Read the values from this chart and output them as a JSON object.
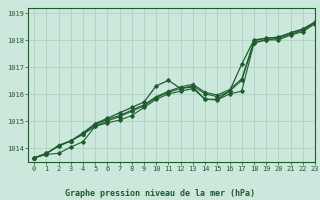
{
  "title": "Graphe pression niveau de la mer (hPa)",
  "background_color": "#cce8dd",
  "grid_color": "#aad4c0",
  "line_color": "#1e5c2e",
  "xlim": [
    -0.5,
    23
  ],
  "ylim": [
    1013.5,
    1019.2
  ],
  "yticks": [
    1014,
    1015,
    1016,
    1017,
    1018,
    1019
  ],
  "xticks": [
    0,
    1,
    2,
    3,
    4,
    5,
    6,
    7,
    8,
    9,
    10,
    11,
    12,
    13,
    14,
    15,
    16,
    17,
    18,
    19,
    20,
    21,
    22,
    23
  ],
  "series": [
    [
      1013.65,
      1013.78,
      1013.82,
      1014.05,
      1014.25,
      1014.82,
      1014.95,
      1015.05,
      1015.22,
      1015.52,
      1015.82,
      1016.02,
      1016.12,
      1016.22,
      1015.82,
      1015.8,
      1016.02,
      1016.12,
      1017.9,
      1018.02,
      1018.02,
      1018.2,
      1018.32,
      1018.62
    ],
    [
      1013.65,
      1013.82,
      1014.08,
      1014.28,
      1014.52,
      1014.82,
      1015.02,
      1015.18,
      1015.38,
      1015.58,
      1015.88,
      1016.08,
      1016.22,
      1016.32,
      1016.02,
      1015.92,
      1016.12,
      1016.52,
      1017.92,
      1018.02,
      1018.08,
      1018.22,
      1018.38,
      1018.62
    ],
    [
      1013.65,
      1013.8,
      1014.12,
      1014.28,
      1014.55,
      1014.88,
      1015.08,
      1015.22,
      1015.42,
      1015.62,
      1015.92,
      1016.12,
      1016.28,
      1016.38,
      1016.08,
      1015.98,
      1016.18,
      1016.58,
      1017.98,
      1018.08,
      1018.12,
      1018.28,
      1018.42,
      1018.68
    ],
    [
      1013.65,
      1013.82,
      1014.1,
      1014.28,
      1014.58,
      1014.92,
      1015.12,
      1015.32,
      1015.52,
      1015.72,
      1016.32,
      1016.52,
      1016.22,
      1016.28,
      1015.82,
      1015.82,
      1016.12,
      1017.12,
      1018.02,
      1018.08,
      1018.12,
      1018.28,
      1018.42,
      1018.68
    ]
  ]
}
